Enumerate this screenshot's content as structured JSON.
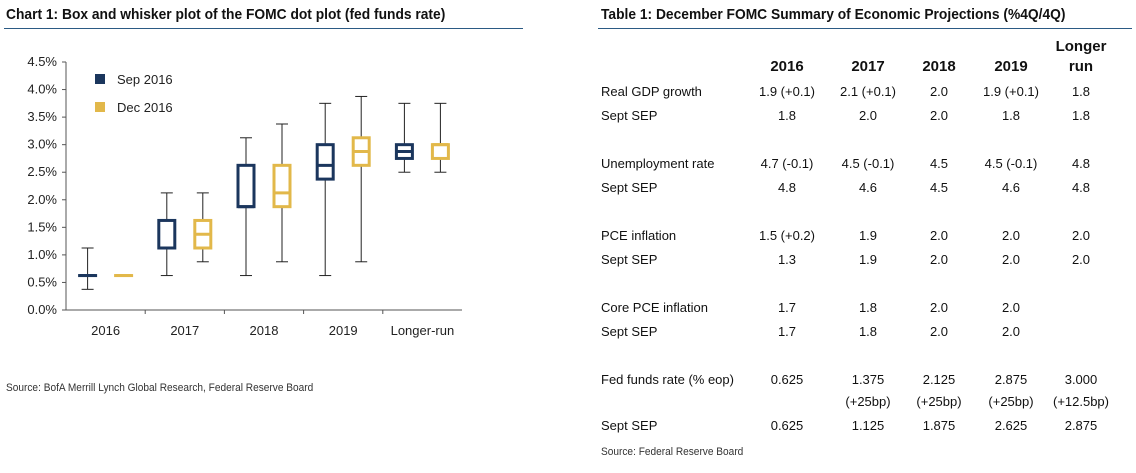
{
  "chart_title": "Chart 1: Box and whisker plot of the FOMC dot plot (fed funds rate)",
  "chart_source": "Source: BofA Merrill Lynch Global Research, Federal Reserve Board",
  "table_title": "Table 1: December FOMC Summary of Economic Projections (%4Q/4Q)",
  "table_source": "Source: Federal Reserve Board",
  "colors": {
    "sep": "#1b365d",
    "dec": "#e2b84a",
    "rule": "#2b5a84"
  },
  "chart_data": {
    "type": "box",
    "title": "Chart 1: Box and whisker plot of the FOMC dot plot (fed funds rate)",
    "categories": [
      "2016",
      "2017",
      "2018",
      "2019",
      "Longer-run"
    ],
    "y_ticks": [
      "0.0%",
      "0.5%",
      "1.0%",
      "1.5%",
      "2.0%",
      "2.5%",
      "3.0%",
      "3.5%",
      "4.0%",
      "4.5%"
    ],
    "ylim": [
      0,
      4.5
    ],
    "legend_position": "top-left",
    "grid": false,
    "series": [
      {
        "name": "Sep 2016",
        "color": "#1b365d",
        "boxes": [
          {
            "min": 0.375,
            "q1": 0.625,
            "median": 0.625,
            "q3": 0.625,
            "max": 1.125
          },
          {
            "min": 0.625,
            "q1": 1.125,
            "median": 1.125,
            "q3": 1.625,
            "max": 2.125
          },
          {
            "min": 0.625,
            "q1": 1.875,
            "median": 1.875,
            "q3": 2.625,
            "max": 3.125
          },
          {
            "min": 0.625,
            "q1": 2.375,
            "median": 2.625,
            "q3": 3.0,
            "max": 3.75
          },
          {
            "min": 2.5,
            "q1": 2.75,
            "median": 2.875,
            "q3": 3.0,
            "max": 3.75
          }
        ]
      },
      {
        "name": "Dec 2016",
        "color": "#e2b84a",
        "boxes": [
          {
            "min": 0.625,
            "q1": 0.625,
            "median": 0.625,
            "q3": 0.625,
            "max": 0.625
          },
          {
            "min": 0.875,
            "q1": 1.125,
            "median": 1.375,
            "q3": 1.625,
            "max": 2.125
          },
          {
            "min": 0.875,
            "q1": 1.875,
            "median": 2.125,
            "q3": 2.625,
            "max": 3.375
          },
          {
            "min": 0.875,
            "q1": 2.625,
            "median": 2.875,
            "q3": 3.125,
            "max": 3.875
          },
          {
            "min": 2.5,
            "q1": 2.75,
            "median": 3.0,
            "q3": 3.0,
            "max": 3.75
          }
        ]
      }
    ]
  },
  "table": {
    "columns": [
      "2016",
      "2017",
      "2018",
      "2019",
      "Longer run"
    ],
    "rows": [
      {
        "label": "Real GDP growth",
        "values": [
          "1.9 (+0.1)",
          "2.1 (+0.1)",
          "2.0",
          "1.9 (+0.1)",
          "1.8"
        ]
      },
      {
        "label": "Sept SEP",
        "values": [
          "1.8",
          "2.0",
          "2.0",
          "1.8",
          "1.8"
        ]
      },
      {
        "label": "Unemployment rate",
        "values": [
          "4.7 (-0.1)",
          "4.5 (-0.1)",
          "4.5",
          "4.5 (-0.1)",
          "4.8"
        ]
      },
      {
        "label": "Sept SEP",
        "values": [
          "4.8",
          "4.6",
          "4.5",
          "4.6",
          "4.8"
        ]
      },
      {
        "label": "PCE inflation",
        "values": [
          "1.5 (+0.2)",
          "1.9",
          "2.0",
          "2.0",
          "2.0"
        ]
      },
      {
        "label": "Sept SEP",
        "values": [
          "1.3",
          "1.9",
          "2.0",
          "2.0",
          "2.0"
        ]
      },
      {
        "label": "Core PCE inflation",
        "values": [
          "1.7",
          "1.8",
          "2.0",
          "2.0",
          ""
        ]
      },
      {
        "label": "Sept SEP",
        "values": [
          "1.7",
          "1.8",
          "2.0",
          "2.0",
          ""
        ]
      },
      {
        "label": "Fed funds rate (% eop)",
        "values": [
          "0.625",
          "1.375",
          "2.125",
          "2.875",
          "3.000"
        ],
        "sub": [
          "",
          "(+25bp)",
          "(+25bp)",
          "(+25bp)",
          "(+12.5bp)"
        ]
      },
      {
        "label": "Sept SEP",
        "values": [
          "0.625",
          "1.125",
          "1.875",
          "2.625",
          "2.875"
        ]
      }
    ]
  }
}
